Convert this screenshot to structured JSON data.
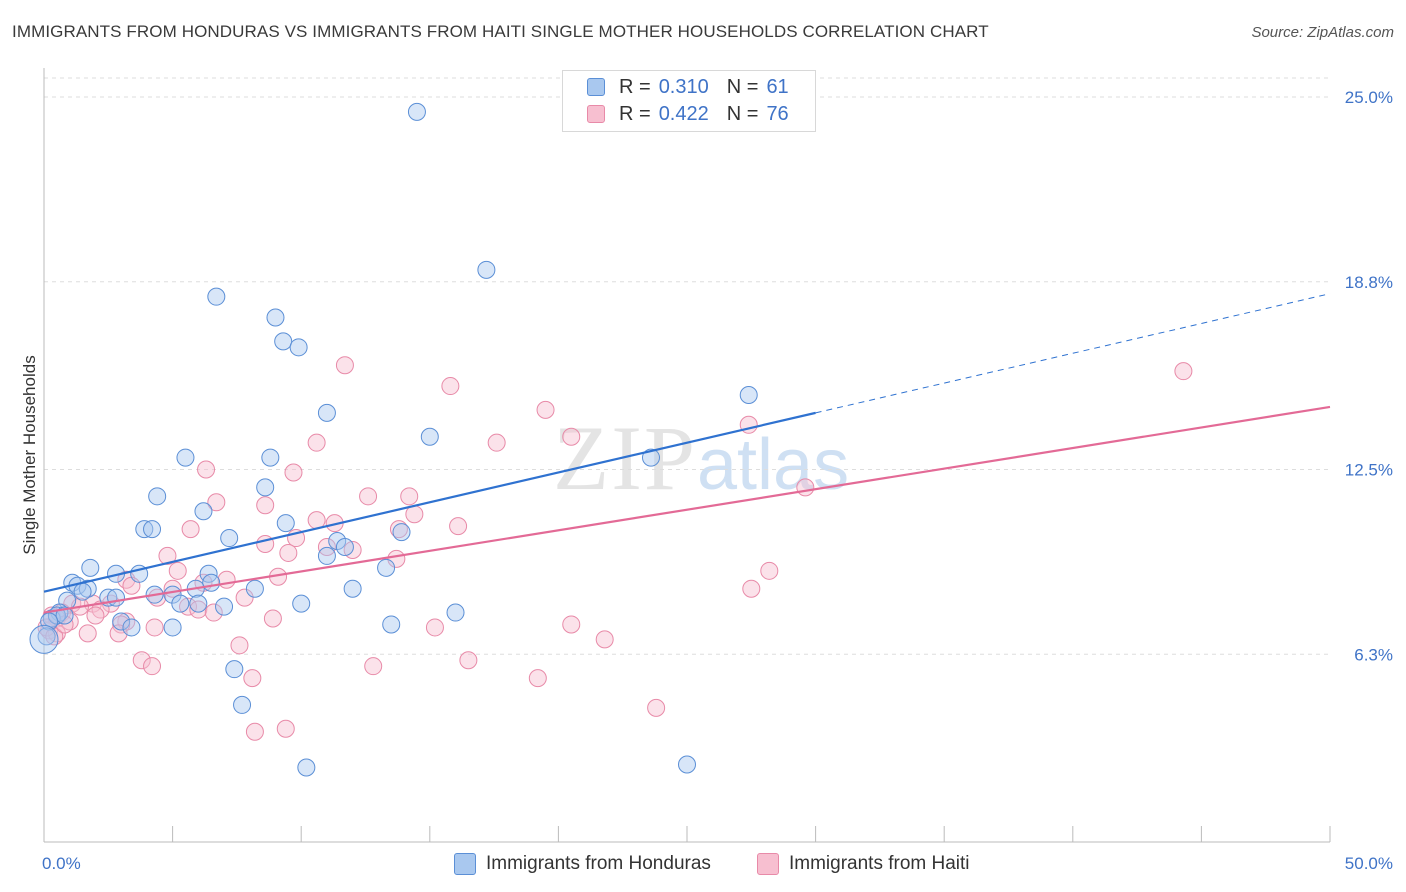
{
  "header": {
    "title": "IMMIGRANTS FROM HONDURAS VS IMMIGRANTS FROM HAITI SINGLE MOTHER HOUSEHOLDS CORRELATION CHART",
    "source": "Source: ZipAtlas.com"
  },
  "watermark": {
    "main": "ZIP",
    "sub": "atlas"
  },
  "legend": {
    "rows": [
      {
        "r_label": "R =",
        "r_value": "0.310",
        "n_label": "N =",
        "n_value": "61"
      },
      {
        "r_label": "R =",
        "r_value": "0.422",
        "n_label": "N =",
        "n_value": "76"
      }
    ]
  },
  "bottom_legend": {
    "honduras": "Immigrants from Honduras",
    "haiti": "Immigrants from Haiti"
  },
  "colors": {
    "honduras_fill": "#a9c8ef",
    "honduras_stroke": "#5b8fd6",
    "honduras_line": "#2f72d0",
    "haiti_fill": "#f7bfd0",
    "haiti_stroke": "#e88aa8",
    "haiti_line": "#e36a96",
    "tick": "#3f73c7",
    "grid": "#dddddd"
  },
  "chart_data": {
    "type": "scatter",
    "ylabel": "Single Mother Households",
    "xlim": [
      0,
      50
    ],
    "ylim": [
      0,
      26.3
    ],
    "x_tick_labels": [
      {
        "value": 0,
        "label": "0.0%"
      },
      {
        "value": 50,
        "label": "50.0%"
      }
    ],
    "y_ticks": [
      {
        "value": 6.3,
        "label": "6.3%"
      },
      {
        "value": 12.5,
        "label": "12.5%"
      },
      {
        "value": 18.8,
        "label": "18.8%"
      },
      {
        "value": 25.0,
        "label": "25.0%"
      }
    ],
    "grid": "horizontal dashed",
    "series": [
      {
        "name": "Immigrants from Honduras",
        "r": 0.31,
        "n": 61,
        "trend": {
          "x0": 0,
          "y0": 8.4,
          "x1": 30,
          "y1": 14.4,
          "dashed_to_x": 50,
          "dashed_to_y": 18.4
        },
        "points": [
          [
            14.5,
            24.5
          ],
          [
            17.2,
            19.2
          ],
          [
            6.7,
            18.3
          ],
          [
            9.0,
            17.6
          ],
          [
            9.3,
            16.8
          ],
          [
            9.9,
            16.6
          ],
          [
            27.4,
            15.0
          ],
          [
            11.0,
            14.4
          ],
          [
            15.0,
            13.6
          ],
          [
            5.5,
            12.9
          ],
          [
            8.8,
            12.9
          ],
          [
            23.6,
            12.9
          ],
          [
            8.6,
            11.9
          ],
          [
            4.4,
            11.6
          ],
          [
            6.2,
            11.1
          ],
          [
            9.4,
            10.7
          ],
          [
            3.9,
            10.5
          ],
          [
            4.2,
            10.5
          ],
          [
            7.2,
            10.2
          ],
          [
            11.4,
            10.1
          ],
          [
            13.9,
            10.4
          ],
          [
            11.0,
            9.6
          ],
          [
            11.7,
            9.9
          ],
          [
            1.8,
            9.2
          ],
          [
            13.3,
            9.2
          ],
          [
            2.8,
            9.0
          ],
          [
            3.7,
            9.0
          ],
          [
            6.4,
            9.0
          ],
          [
            6.5,
            8.7
          ],
          [
            1.1,
            8.7
          ],
          [
            1.3,
            8.6
          ],
          [
            1.7,
            8.5
          ],
          [
            5.9,
            8.5
          ],
          [
            8.2,
            8.5
          ],
          [
            12.0,
            8.5
          ],
          [
            1.5,
            8.4
          ],
          [
            2.5,
            8.2
          ],
          [
            2.8,
            8.2
          ],
          [
            4.3,
            8.3
          ],
          [
            5.0,
            8.3
          ],
          [
            0.9,
            8.1
          ],
          [
            5.3,
            8.0
          ],
          [
            6.0,
            8.0
          ],
          [
            7.0,
            7.9
          ],
          [
            10.0,
            8.0
          ],
          [
            16.0,
            7.7
          ],
          [
            0.6,
            7.7
          ],
          [
            0.3,
            7.5
          ],
          [
            0.5,
            7.6
          ],
          [
            0.8,
            7.6
          ],
          [
            3.0,
            7.4
          ],
          [
            3.4,
            7.2
          ],
          [
            5.0,
            7.2
          ],
          [
            13.5,
            7.3
          ],
          [
            0.2,
            7.4
          ],
          [
            0.1,
            6.9
          ],
          [
            7.4,
            5.8
          ],
          [
            7.7,
            4.6
          ],
          [
            10.2,
            2.5
          ],
          [
            25.0,
            2.6
          ],
          [
            0.0,
            6.8
          ]
        ]
      },
      {
        "name": "Immigrants from Haiti",
        "r": 0.422,
        "n": 76,
        "trend": {
          "x0": 0,
          "y0": 7.7,
          "x1": 50,
          "y1": 14.6
        },
        "points": [
          [
            44.3,
            15.8
          ],
          [
            11.7,
            16.0
          ],
          [
            15.8,
            15.3
          ],
          [
            19.5,
            14.5
          ],
          [
            27.4,
            14.0
          ],
          [
            20.5,
            13.6
          ],
          [
            10.6,
            13.4
          ],
          [
            17.6,
            13.4
          ],
          [
            6.3,
            12.5
          ],
          [
            9.7,
            12.4
          ],
          [
            29.6,
            11.9
          ],
          [
            12.6,
            11.6
          ],
          [
            14.2,
            11.6
          ],
          [
            6.7,
            11.4
          ],
          [
            8.6,
            11.3
          ],
          [
            14.4,
            11.0
          ],
          [
            10.6,
            10.8
          ],
          [
            11.3,
            10.7
          ],
          [
            16.1,
            10.6
          ],
          [
            5.7,
            10.5
          ],
          [
            13.8,
            10.5
          ],
          [
            9.8,
            10.2
          ],
          [
            8.6,
            10.0
          ],
          [
            11.0,
            9.9
          ],
          [
            12.0,
            9.8
          ],
          [
            9.5,
            9.7
          ],
          [
            4.8,
            9.6
          ],
          [
            13.7,
            9.5
          ],
          [
            5.2,
            9.1
          ],
          [
            28.2,
            9.1
          ],
          [
            9.1,
            8.9
          ],
          [
            3.2,
            8.8
          ],
          [
            7.1,
            8.8
          ],
          [
            6.2,
            8.7
          ],
          [
            3.4,
            8.6
          ],
          [
            5.0,
            8.5
          ],
          [
            27.5,
            8.5
          ],
          [
            4.4,
            8.2
          ],
          [
            7.8,
            8.2
          ],
          [
            1.1,
            8.0
          ],
          [
            1.9,
            8.0
          ],
          [
            2.6,
            8.0
          ],
          [
            5.6,
            7.9
          ],
          [
            2.2,
            7.8
          ],
          [
            6.0,
            7.8
          ],
          [
            6.6,
            7.7
          ],
          [
            0.7,
            7.7
          ],
          [
            0.3,
            7.6
          ],
          [
            0.5,
            7.5
          ],
          [
            1.0,
            7.4
          ],
          [
            3.2,
            7.4
          ],
          [
            8.9,
            7.5
          ],
          [
            3.0,
            7.3
          ],
          [
            4.3,
            7.2
          ],
          [
            15.2,
            7.2
          ],
          [
            20.5,
            7.3
          ],
          [
            0.2,
            7.1
          ],
          [
            1.7,
            7.0
          ],
          [
            2.9,
            7.0
          ],
          [
            0.5,
            7.0
          ],
          [
            21.8,
            6.8
          ],
          [
            7.6,
            6.6
          ],
          [
            3.8,
            6.1
          ],
          [
            16.5,
            6.1
          ],
          [
            4.2,
            5.9
          ],
          [
            12.8,
            5.9
          ],
          [
            8.1,
            5.5
          ],
          [
            19.2,
            5.5
          ],
          [
            23.8,
            4.5
          ],
          [
            8.2,
            3.7
          ],
          [
            9.4,
            3.8
          ],
          [
            0.1,
            7.2
          ],
          [
            0.4,
            6.9
          ],
          [
            2.0,
            7.6
          ],
          [
            1.4,
            7.9
          ],
          [
            0.8,
            7.3
          ]
        ]
      }
    ]
  }
}
